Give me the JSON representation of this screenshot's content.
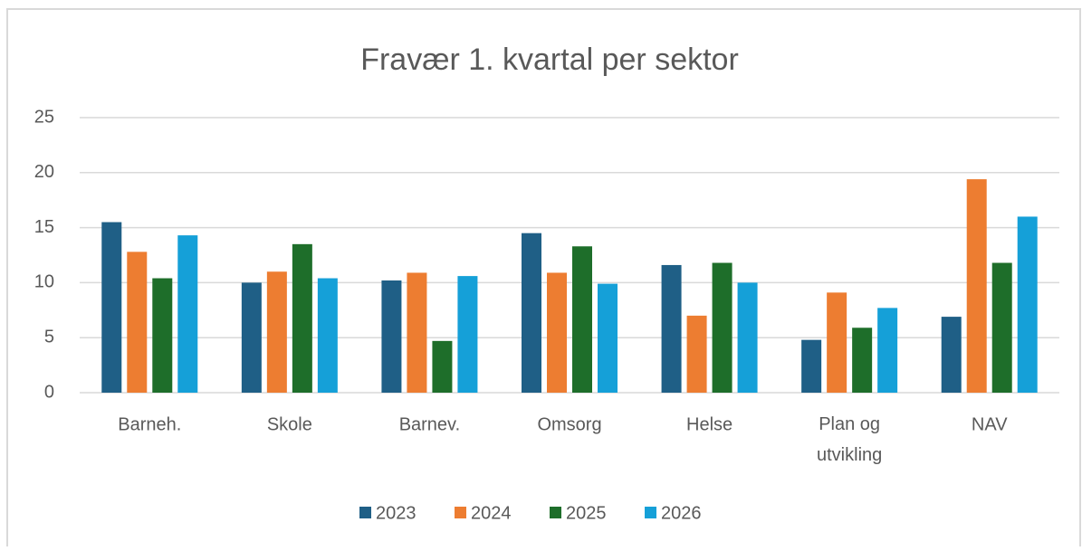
{
  "chart_data": {
    "type": "bar",
    "title": "Fravær 1. kvartal per sektor",
    "categories": [
      "Barneh.",
      "Skole",
      "Barnev.",
      "Omsorg",
      "Helse",
      "Plan og utvikling",
      "NAV"
    ],
    "series": [
      {
        "name": "2023",
        "color": "#1f5f86",
        "values": [
          15.5,
          10.0,
          10.2,
          14.5,
          11.6,
          4.8,
          6.9
        ]
      },
      {
        "name": "2024",
        "color": "#ed7d31",
        "values": [
          12.8,
          11.0,
          10.9,
          10.9,
          7.0,
          9.1,
          19.4
        ]
      },
      {
        "name": "2025",
        "color": "#1e6e2a",
        "values": [
          10.4,
          13.5,
          4.7,
          13.3,
          11.8,
          5.9,
          11.8
        ]
      },
      {
        "name": "2026",
        "color": "#15a0d8",
        "values": [
          14.3,
          10.4,
          10.6,
          9.9,
          10.0,
          7.7,
          16.0
        ]
      }
    ],
    "ylim": [
      0,
      25
    ],
    "yticks": [
      0,
      5,
      10,
      15,
      20,
      25
    ],
    "grid": true,
    "legend": "bottom"
  }
}
